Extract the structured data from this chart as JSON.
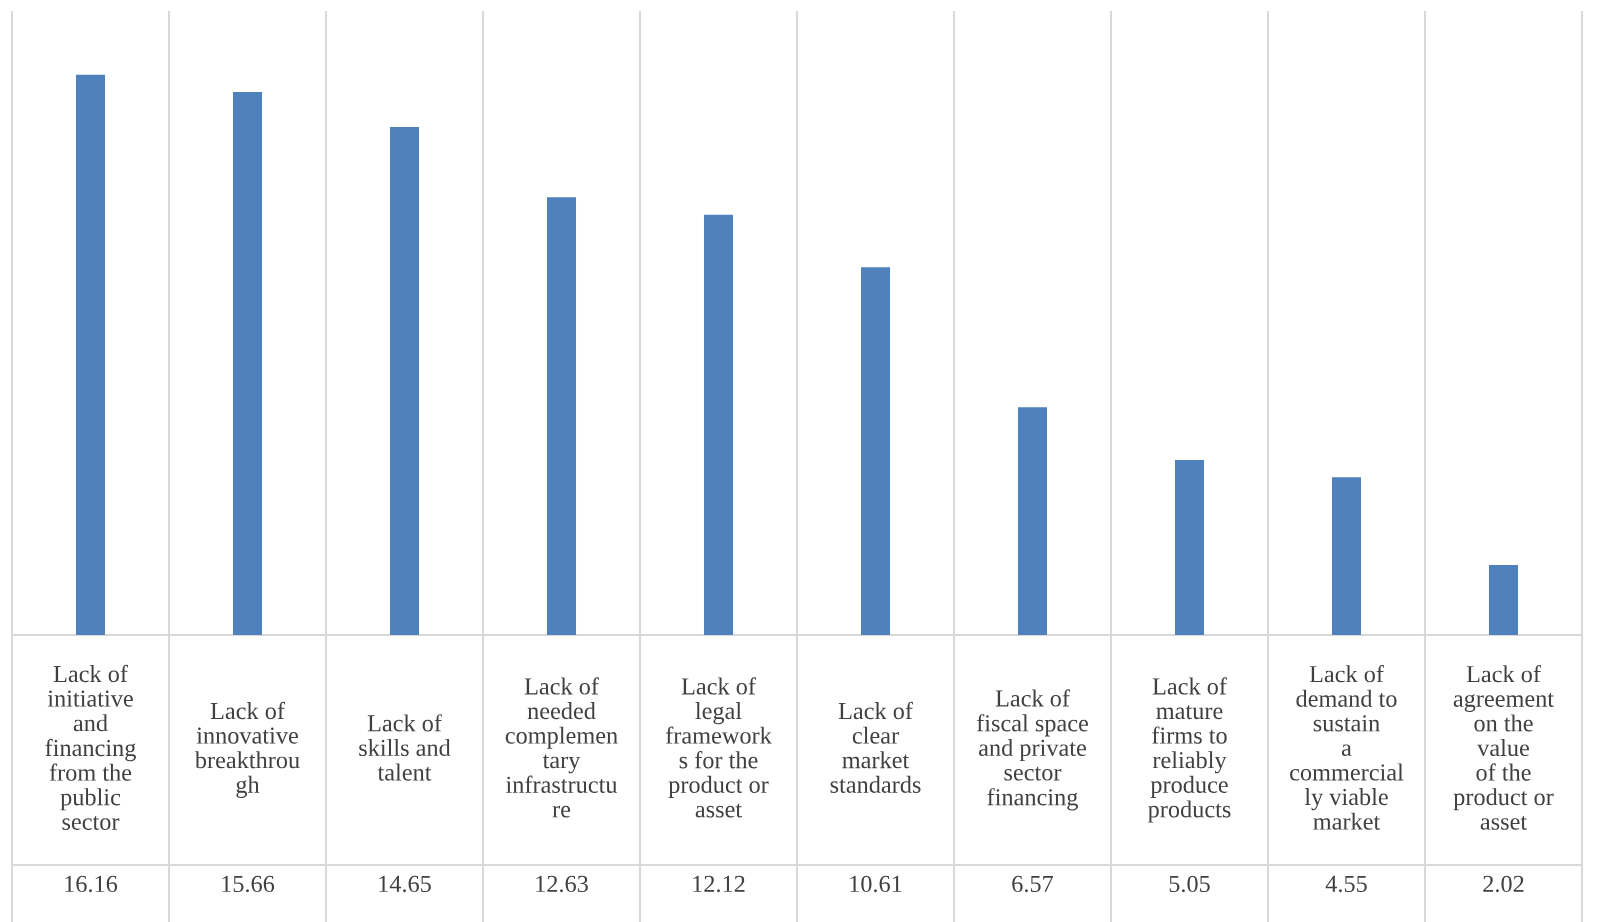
{
  "chart_data": {
    "type": "bar",
    "categories": [
      "Lack of\ninitiative\nand\nfinancing\nfrom the\npublic\nsector",
      "Lack of\ninnovative\nbreakthrou\ngh",
      "Lack of\nskills and\ntalent",
      "Lack of\nneeded\ncomplemen\ntary\ninfrastructu\nre",
      "Lack of\nlegal\nframework\ns for the\nproduct or\nasset",
      "Lack of\nclear\nmarket\nstandards",
      "Lack of\nfiscal space\nand private\nsector\nfinancing",
      "Lack of\nmature\nfirms to\nreliably\nproduce\nproducts",
      "Lack of\ndemand to\nsustain\na\ncommercial\nly viable\nmarket",
      "Lack of\nagreement\non the\nvalue\nof the\nproduct or\nasset"
    ],
    "values": [
      16.16,
      15.66,
      14.65,
      12.63,
      12.12,
      10.61,
      6.57,
      5.05,
      4.55,
      2.02
    ],
    "color": "#4f81bd",
    "data_labels": true
  }
}
